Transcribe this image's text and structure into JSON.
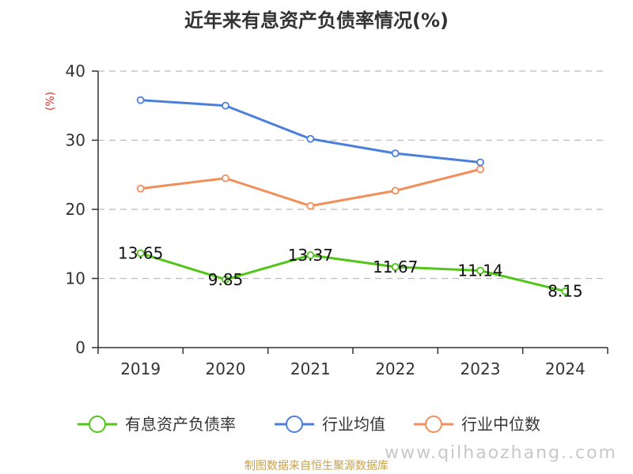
{
  "chart_data": {
    "type": "line",
    "title": "近年来有息资产负债率情况(%)",
    "y_unit": "(%)",
    "categories": [
      "2019",
      "2020",
      "2021",
      "2022",
      "2023",
      "2024"
    ],
    "ylim": [
      0,
      40
    ],
    "yticks": [
      "0",
      "10",
      "20",
      "30",
      "40"
    ],
    "grid": true,
    "legend_position": "bottom",
    "series": [
      {
        "name": "有息资产负债率",
        "color": "#52c41a",
        "values": [
          13.65,
          9.85,
          13.37,
          11.67,
          11.14,
          8.15
        ],
        "labels": [
          "13.65",
          "9.85",
          "13.37",
          "11.67",
          "11.14",
          "8.15"
        ]
      },
      {
        "name": "行业均值",
        "color": "#4a7fdc",
        "values": [
          35.8,
          35.0,
          30.2,
          28.1,
          26.8,
          null
        ]
      },
      {
        "name": "行业中位数",
        "color": "#f28e5a",
        "values": [
          23.0,
          24.5,
          20.5,
          22.7,
          25.8,
          null
        ]
      }
    ]
  },
  "footer": {
    "source": "制图数据来自恒生聚源数据库",
    "watermark": "www.qilhaozhang..com"
  }
}
